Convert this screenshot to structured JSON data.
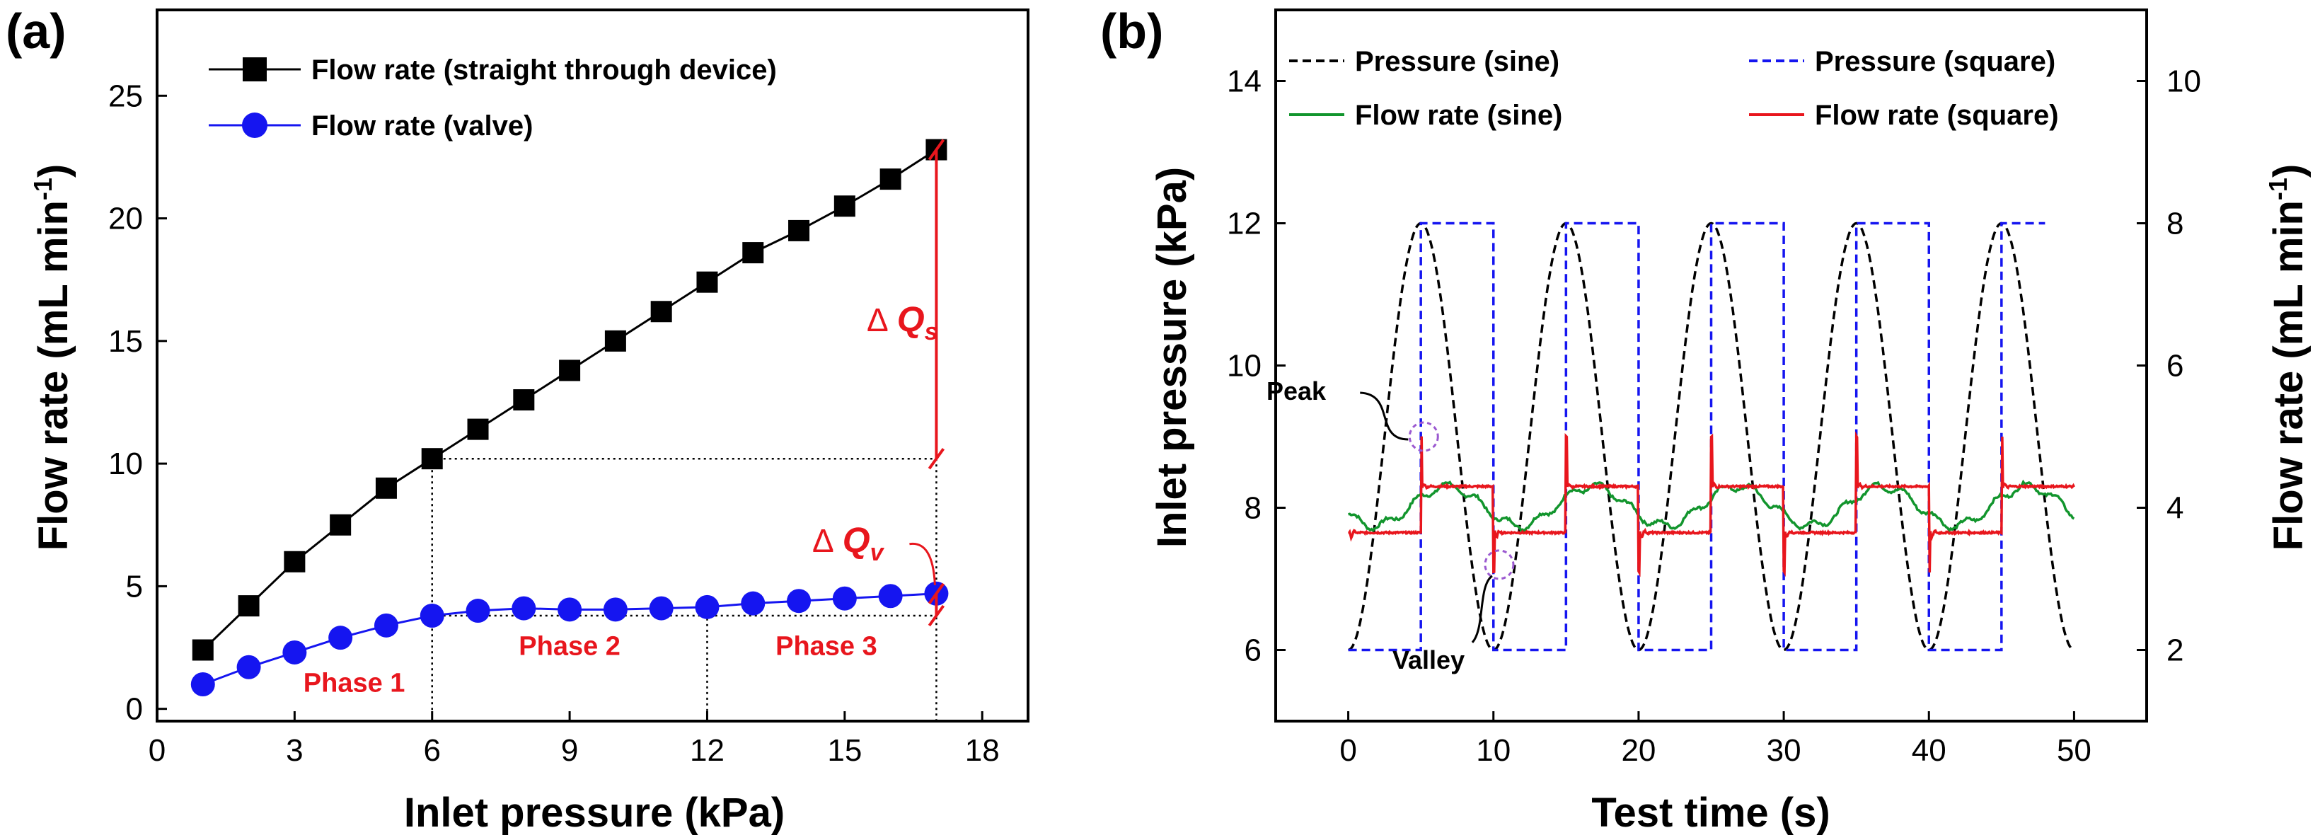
{
  "chart_data": [
    {
      "panel": "(a)",
      "type": "line",
      "xlabel": "Inlet pressure (kPa)",
      "ylabel": "Flow rate (mL min",
      "ylabel_sup": "-1",
      "ylabel_end": ")",
      "xlim": [
        0,
        19
      ],
      "ylim": [
        -0.5,
        28.5
      ],
      "xticks": [
        0,
        3,
        6,
        9,
        12,
        15,
        18
      ],
      "yticks": [
        0,
        5,
        10,
        15,
        20,
        25
      ],
      "series": [
        {
          "name": "Flow rate (straight through device)",
          "color": "#000000",
          "marker": "square",
          "x": [
            1,
            2,
            3,
            4,
            5,
            6,
            7,
            8,
            9,
            10,
            11,
            12,
            13,
            14,
            15,
            16,
            17
          ],
          "y": [
            2.4,
            4.2,
            6.0,
            7.5,
            9.0,
            10.2,
            11.4,
            12.6,
            13.8,
            15.0,
            16.2,
            17.4,
            18.6,
            19.5,
            20.5,
            21.6,
            22.8
          ]
        },
        {
          "name": "Flow rate (valve)",
          "color": "#1515f0",
          "marker": "circle",
          "x": [
            1,
            2,
            3,
            4,
            5,
            6,
            7,
            8,
            9,
            10,
            11,
            12,
            13,
            14,
            15,
            16,
            17
          ],
          "y": [
            1.0,
            1.7,
            2.3,
            2.9,
            3.4,
            3.8,
            4.0,
            4.1,
            4.05,
            4.05,
            4.1,
            4.15,
            4.3,
            4.4,
            4.5,
            4.6,
            4.7
          ]
        }
      ],
      "phases": [
        {
          "label": "Phase 1",
          "x": 4.3,
          "y": 0.7
        },
        {
          "label": "Phase 2",
          "x": 9.0,
          "y": 2.2
        },
        {
          "label": "Phase 3",
          "x": 14.6,
          "y": 2.2
        }
      ],
      "phase_boundaries": [
        6,
        12,
        17
      ],
      "delta_s": {
        "label": "Q",
        "sub": "s",
        "prefix": "Δ",
        "x": 17,
        "from": 10.2,
        "to": 22.8
      },
      "delta_v": {
        "label": "Q",
        "sub": "v",
        "prefix": "Δ",
        "x": 17,
        "from": 3.8,
        "to": 4.7
      },
      "legend_position": "top-left"
    },
    {
      "panel": "(b)",
      "type": "line",
      "xlabel": "Test time (s)",
      "ylabel_left": "Inlet pressure (kPa)",
      "ylabel_right": "Flow rate (mL min",
      "ylabel_right_sup": "-1",
      "ylabel_right_end": ")",
      "xlim": [
        -5,
        55
      ],
      "ylim_left": [
        5.0,
        15.0
      ],
      "ylim_right": [
        1.0,
        11.0
      ],
      "xticks": [
        0,
        10,
        20,
        30,
        40,
        50
      ],
      "yticks_left": [
        6,
        8,
        10,
        12,
        14
      ],
      "yticks_right": [
        2,
        4,
        6,
        8,
        10
      ],
      "series": [
        {
          "name": "Pressure (sine)",
          "color": "#000000",
          "style": "dashed",
          "axis": "left",
          "function": "sine",
          "period_s": 10,
          "min": 6,
          "max": 12,
          "t_end": 50
        },
        {
          "name": "Pressure (square)",
          "color": "#1515f0",
          "style": "dashed",
          "axis": "left",
          "function": "square",
          "period_s": 10,
          "low": 6,
          "high": 12,
          "t_end": 48
        },
        {
          "name": "Flow rate (sine)",
          "color": "#12952d",
          "style": "solid",
          "axis": "right",
          "function": "sine-response",
          "period_s": 10,
          "min": 3.75,
          "max": 4.3,
          "t_end": 50
        },
        {
          "name": "Flow rate (square)",
          "color": "#e8161d",
          "style": "solid",
          "axis": "right",
          "function": "square-response",
          "period_s": 10,
          "low": 3.65,
          "high": 4.3,
          "spike_high": 5.0,
          "spike_low": 3.1,
          "t_end": 50
        }
      ],
      "annotations": [
        {
          "label": "Peak",
          "t": 5.2,
          "value": 9.0
        },
        {
          "label": "Valley",
          "t": 10.4,
          "value": 7.2
        }
      ],
      "legend_position": "top"
    }
  ]
}
